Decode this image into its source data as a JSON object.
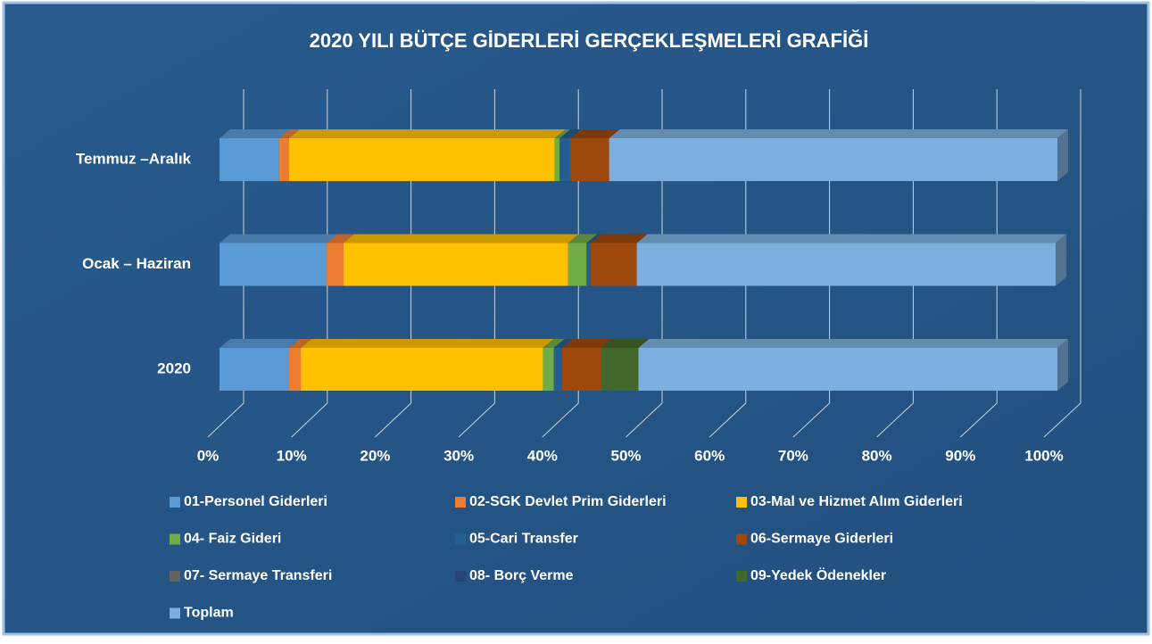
{
  "chart_data": {
    "type": "stacked_bar_horizontal",
    "title": "2020 YILI BÜTÇE GİDERLERİ GERÇEKLEŞMELERİ GRAFİĞİ",
    "categories": [
      "Temmuz –Aralık",
      "Ocak – Haziran",
      "2020"
    ],
    "series": [
      {
        "name": "01-Personel Giderleri",
        "color": "#5b9bd5",
        "values": [
          7.1,
          12.8,
          8.3
        ]
      },
      {
        "name": "02-SGK Devlet Prim Giderleri",
        "color": "#ed7d31",
        "values": [
          1.2,
          2.0,
          1.4
        ]
      },
      {
        "name": "03-Mal ve Hizmet Alım Giderleri",
        "color": "#ffc000",
        "values": [
          31.7,
          26.8,
          28.9
        ]
      },
      {
        "name": "04- Faiz Gideri",
        "color": "#70ad47",
        "values": [
          0.6,
          2.2,
          1.3
        ]
      },
      {
        "name": "05-Cari Transfer",
        "color": "#255e91",
        "values": [
          1.3,
          0.5,
          1.0
        ]
      },
      {
        "name": "06-Sermaye Giderleri",
        "color": "#9e480e",
        "values": [
          4.6,
          5.5,
          4.6
        ]
      },
      {
        "name": "07- Sermaye Transferi",
        "color": "#636363",
        "values": [
          0,
          0,
          0
        ]
      },
      {
        "name": "08- Borç Verme",
        "color": "#264478",
        "values": [
          0,
          0,
          0
        ]
      },
      {
        "name": "09-Yedek Ödenekler",
        "color": "#43682b",
        "values": [
          0,
          0,
          4.5
        ]
      },
      {
        "name": "Toplam",
        "color": "#7cafdd",
        "values": [
          53.5,
          50.0,
          50.0
        ]
      }
    ],
    "xlim": [
      0,
      100
    ],
    "xticks": [
      {
        "value": 0,
        "label": "0%"
      },
      {
        "value": 10,
        "label": "10%"
      },
      {
        "value": 20,
        "label": "20%"
      },
      {
        "value": 30,
        "label": "30%"
      },
      {
        "value": 40,
        "label": "40%"
      },
      {
        "value": 50,
        "label": "50%"
      },
      {
        "value": 60,
        "label": "60%"
      },
      {
        "value": 70,
        "label": "70%"
      },
      {
        "value": 80,
        "label": "80%"
      },
      {
        "value": 90,
        "label": "90%"
      },
      {
        "value": 100,
        "label": "100%"
      }
    ],
    "grid": true,
    "legend": "bottom"
  }
}
